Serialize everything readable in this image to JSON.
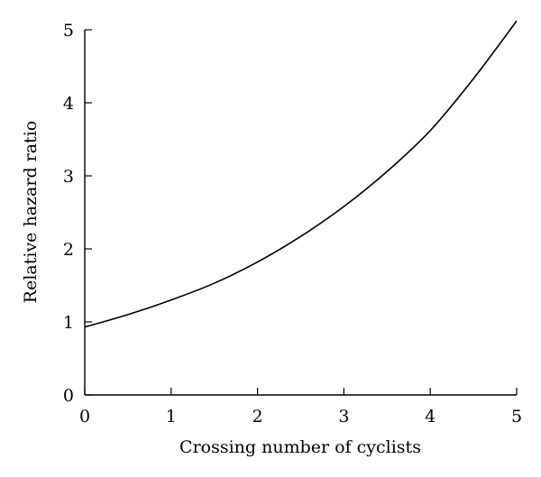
{
  "chart_data": {
    "type": "line",
    "title": "",
    "xlabel": "Crossing number of cyclists",
    "ylabel": "Relative hazard ratio",
    "xlim": [
      0,
      5
    ],
    "ylim": [
      0,
      5
    ],
    "x_ticks": [
      "0",
      "1",
      "2",
      "3",
      "4",
      "5"
    ],
    "y_ticks": [
      "0",
      "1",
      "2",
      "3",
      "4",
      "5"
    ],
    "grid": false,
    "legend": "none",
    "series": [
      {
        "x": [
          0,
          0.5,
          1,
          1.5,
          2,
          2.5,
          3,
          3.5,
          4,
          4.5,
          5
        ],
        "y": [
          0.93,
          1.1,
          1.3,
          1.53,
          1.82,
          2.17,
          2.58,
          3.06,
          3.62,
          4.33,
          5.12
        ]
      }
    ]
  }
}
